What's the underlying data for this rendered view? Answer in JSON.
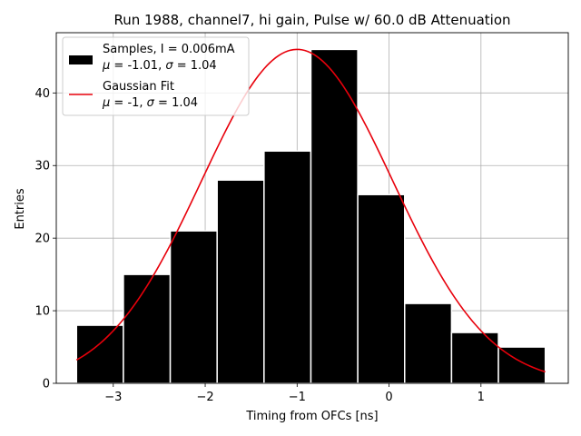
{
  "chart_data": {
    "type": "bar",
    "title": "Run 1988, channel7, hi gain, Pulse w/ 60.0 dB Attenuation",
    "xlabel": "Timing from OFCs [ns]",
    "ylabel": "Entries",
    "xlim": [
      -3.62,
      1.95
    ],
    "ylim": [
      0,
      48.3
    ],
    "grid": true,
    "bin_edges": [
      -3.4,
      -2.89,
      -2.38,
      -1.87,
      -1.36,
      -0.85,
      -0.34,
      0.17,
      0.68,
      1.19,
      1.7
    ],
    "values": [
      8,
      15,
      21,
      28,
      32,
      46,
      26,
      11,
      7,
      5
    ],
    "bar_color": "#000000",
    "bar_edge_color": "#ffffff",
    "fit_color": "#e8000b",
    "gaussian_fit": {
      "amplitude": 46,
      "mu": -1.0,
      "sigma": 1.04,
      "x_range": [
        -3.4,
        1.7
      ]
    },
    "x_ticks": [
      -3,
      -2,
      -1,
      0,
      1
    ],
    "x_tick_labels": [
      "−3",
      "−2",
      "−1",
      "0",
      "1"
    ],
    "y_ticks": [
      0,
      10,
      20,
      30,
      40
    ],
    "y_tick_labels": [
      "0",
      "10",
      "20",
      "30",
      "40"
    ],
    "legend": {
      "placement": "top-left",
      "samples_line1": "Samples, I = 0.006mA",
      "samples_mu_sym": "μ",
      "samples_mu_rest": " = -1.01, ",
      "samples_sigma_sym": "σ",
      "samples_sigma_rest": " = 1.04",
      "fit_line1": "Gaussian Fit",
      "fit_mu_sym": "μ",
      "fit_mu_rest": " = -1, ",
      "fit_sigma_sym": "σ",
      "fit_sigma_rest": " = 1.04"
    }
  }
}
